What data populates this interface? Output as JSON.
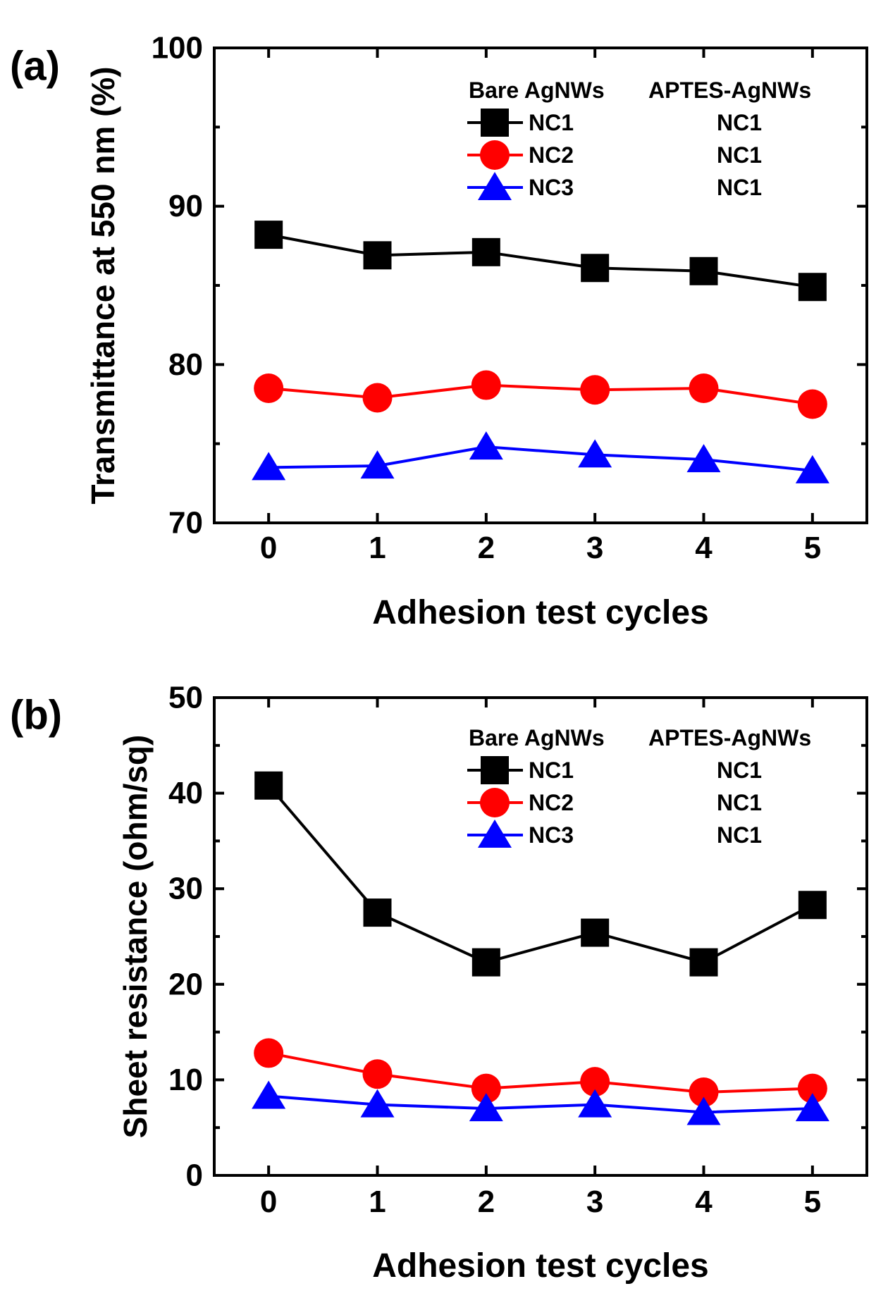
{
  "chart_data": [
    {
      "type": "line",
      "panel_label": "(a)",
      "title": "",
      "xlabel": "Adhesion test cycles",
      "ylabel": "Transmittance at 550 nm (%)",
      "x": [
        0,
        1,
        2,
        3,
        4,
        5
      ],
      "xlim": [
        -0.5,
        5.5
      ],
      "ylim": [
        70,
        100
      ],
      "xticks": [
        0,
        1,
        2,
        3,
        4,
        5
      ],
      "yticks": [
        70,
        80,
        90,
        100
      ],
      "minor_ystep": 5,
      "legend": {
        "position": "top-right",
        "header_left": "Bare AgNWs",
        "header_right": "APTES-AgNWs"
      },
      "series": [
        {
          "name": "NC1",
          "aptes": "NC1",
          "color": "#000000",
          "marker": "square",
          "values": [
            88.2,
            86.9,
            87.1,
            86.1,
            85.9,
            84.9
          ]
        },
        {
          "name": "NC2",
          "aptes": "NC1",
          "color": "#ff0000",
          "marker": "circle",
          "values": [
            78.5,
            77.9,
            78.7,
            78.4,
            78.5,
            77.5
          ]
        },
        {
          "name": "NC3",
          "aptes": "NC1",
          "color": "#0000ff",
          "marker": "triangle",
          "values": [
            73.5,
            73.6,
            74.8,
            74.3,
            74.0,
            73.3
          ]
        }
      ]
    },
    {
      "type": "line",
      "panel_label": "(b)",
      "title": "",
      "xlabel": "Adhesion test cycles",
      "ylabel": "Sheet resistance (ohm/sq)",
      "x": [
        0,
        1,
        2,
        3,
        4,
        5
      ],
      "xlim": [
        -0.5,
        5.5
      ],
      "ylim": [
        0,
        50
      ],
      "xticks": [
        0,
        1,
        2,
        3,
        4,
        5
      ],
      "yticks": [
        0,
        10,
        20,
        30,
        40,
        50
      ],
      "minor_ystep": 5,
      "legend": {
        "position": "top-right",
        "header_left": "Bare AgNWs",
        "header_right": "APTES-AgNWs"
      },
      "series": [
        {
          "name": "NC1",
          "aptes": "NC1",
          "color": "#000000",
          "marker": "square",
          "values": [
            40.8,
            27.5,
            22.3,
            25.4,
            22.3,
            28.3
          ]
        },
        {
          "name": "NC2",
          "aptes": "NC1",
          "color": "#ff0000",
          "marker": "circle",
          "values": [
            12.8,
            10.6,
            9.1,
            9.8,
            8.7,
            9.1
          ]
        },
        {
          "name": "NC3",
          "aptes": "NC1",
          "color": "#0000ff",
          "marker": "triangle",
          "values": [
            8.3,
            7.4,
            7.0,
            7.4,
            6.6,
            7.0
          ]
        }
      ]
    }
  ]
}
